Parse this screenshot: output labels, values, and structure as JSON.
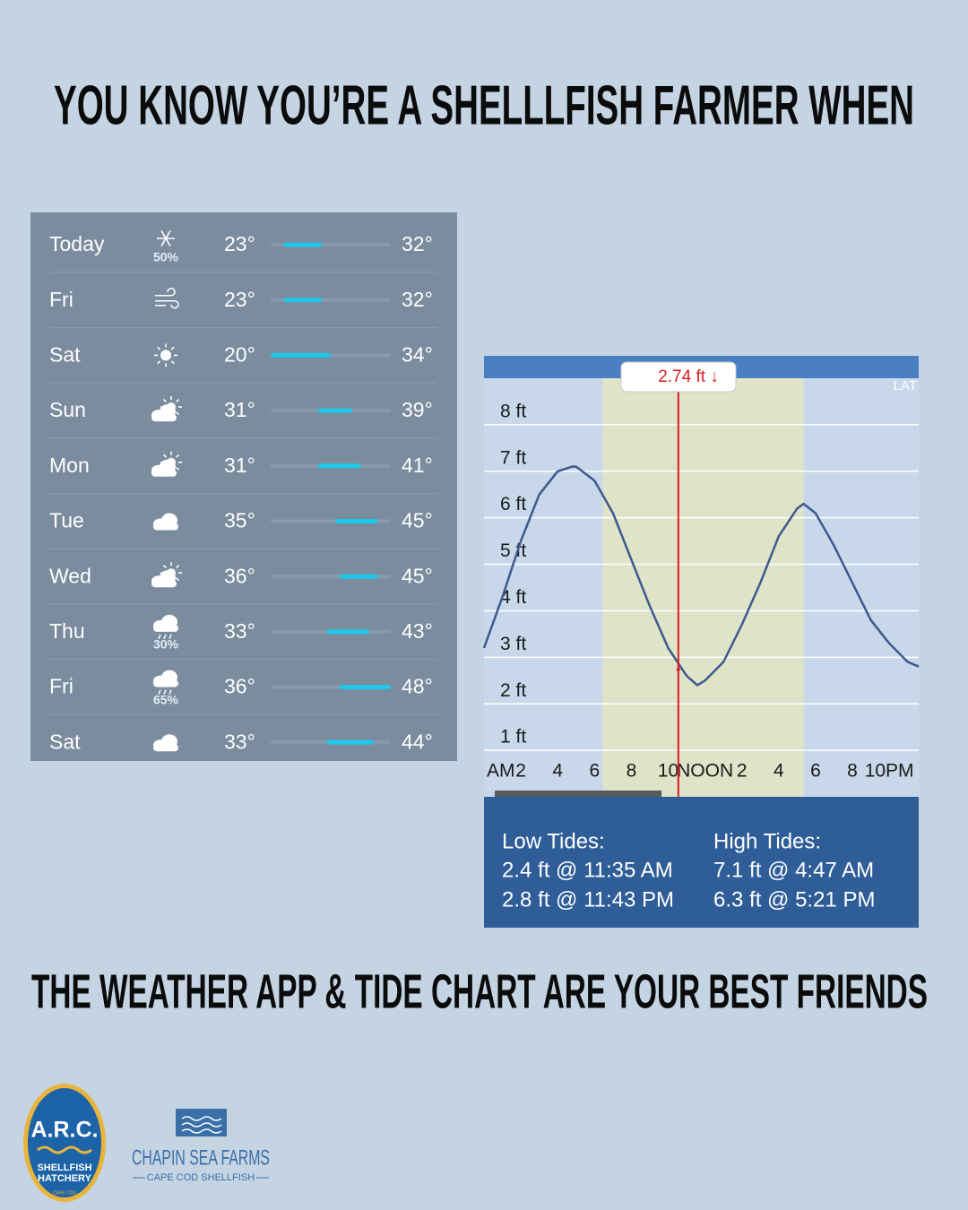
{
  "header": {
    "title": "YOU KNOW YOU’RE A SHELLLFISH FARMER WHEN"
  },
  "weather": {
    "bar_color": "#1ec8e8",
    "days": [
      {
        "day": "Today",
        "icon": "snow",
        "precip": "50%",
        "low": {
          "value": 23,
          "label": "23°"
        },
        "high": {
          "value": 32,
          "label": "32°"
        }
      },
      {
        "day": "Fri",
        "icon": "wind",
        "low": {
          "value": 23,
          "label": "23°"
        },
        "high": {
          "value": 32,
          "label": "32°"
        }
      },
      {
        "day": "Sat",
        "icon": "sun",
        "low": {
          "value": 20,
          "label": "20°"
        },
        "high": {
          "value": 34,
          "label": "34°"
        }
      },
      {
        "day": "Sun",
        "icon": "partly",
        "low": {
          "value": 31,
          "label": "31°"
        },
        "high": {
          "value": 39,
          "label": "39°"
        }
      },
      {
        "day": "Mon",
        "icon": "partly",
        "low": {
          "value": 31,
          "label": "31°"
        },
        "high": {
          "value": 41,
          "label": "41°"
        }
      },
      {
        "day": "Tue",
        "icon": "cloud",
        "low": {
          "value": 35,
          "label": "35°"
        },
        "high": {
          "value": 45,
          "label": "45°"
        }
      },
      {
        "day": "Wed",
        "icon": "partly",
        "low": {
          "value": 36,
          "label": "36°"
        },
        "high": {
          "value": 45,
          "label": "45°"
        }
      },
      {
        "day": "Thu",
        "icon": "rain",
        "precip": "30%",
        "low": {
          "value": 33,
          "label": "33°"
        },
        "high": {
          "value": 43,
          "label": "43°"
        }
      },
      {
        "day": "Fri",
        "icon": "rain",
        "precip": "65%",
        "low": {
          "value": 36,
          "label": "36°"
        },
        "high": {
          "value": 48,
          "label": "48°"
        }
      },
      {
        "day": "Sat",
        "icon": "cloud",
        "low": {
          "value": 33,
          "label": "33°"
        },
        "high": {
          "value": 44,
          "label": "44°"
        }
      }
    ]
  },
  "chart_data": {
    "type": "line",
    "corner_label": "LAT",
    "x": [
      0,
      1,
      2,
      3,
      4,
      4.78,
      5,
      6,
      7,
      8,
      9,
      10,
      11,
      11.58,
      12,
      13,
      14,
      15,
      16,
      17,
      17.35,
      18,
      19,
      20,
      21,
      22,
      23,
      23.6
    ],
    "series": [
      {
        "color": "#3d5a8f",
        "values": [
          3.2,
          4.3,
          5.5,
          6.5,
          7.0,
          7.1,
          7.1,
          6.8,
          6.1,
          5.1,
          4.1,
          3.2,
          2.6,
          2.4,
          2.5,
          2.9,
          3.7,
          4.6,
          5.6,
          6.2,
          6.3,
          6.1,
          5.4,
          4.6,
          3.8,
          3.3,
          2.9,
          2.8
        ]
      }
    ],
    "xlim": [
      0,
      23.6
    ],
    "ylim": [
      0,
      9
    ],
    "xticks": [
      {
        "value": 0,
        "label": "AM"
      },
      2,
      4,
      6,
      8,
      10,
      {
        "value": 12,
        "label": "NOON"
      },
      {
        "value": 14,
        "label": "2"
      },
      {
        "value": 16,
        "label": "4"
      },
      {
        "value": 18,
        "label": "6"
      },
      {
        "value": 20,
        "label": "8"
      },
      {
        "value": 22,
        "label": "10PM"
      }
    ],
    "yticks": [
      {
        "value": 1,
        "label": "1 ft"
      },
      {
        "value": 2,
        "label": "2 ft"
      },
      {
        "value": 3,
        "label": "3 ft"
      },
      {
        "value": 4,
        "label": "4 ft"
      },
      {
        "value": 5,
        "label": "5 ft"
      },
      {
        "value": 6,
        "label": "6 ft"
      },
      {
        "value": 7,
        "label": "7 ft"
      },
      {
        "value": 8,
        "label": "8 ft"
      }
    ],
    "grid": true,
    "daylight": [
      6.45,
      17.35
    ],
    "cursor": {
      "x": 10.55,
      "value": 2.74,
      "value_label": "2.74 ft ↓",
      "color": "#d81e1e"
    }
  },
  "tide_summary": {
    "low_heading": "Low Tides:",
    "low": [
      "2.4 ft @ 11:35 AM",
      "2.8 ft @ 11:43 PM"
    ],
    "high_heading": "High Tides:",
    "high": [
      "7.1 ft @ 4:47 AM",
      "6.3 ft @ 5:21 PM"
    ]
  },
  "footer": {
    "text": "THE WEATHER APP & TIDE CHART  ARE YOUR BEST FRIENDS"
  },
  "logos": {
    "arc": {
      "name": "A.R.C.",
      "line1": "SHELLFISH",
      "line2": "HATCHERY",
      "place": "CAPE COD"
    },
    "chapin": {
      "name": "CHAPIN SEA FARMS",
      "tagline": "CAPE COD SHELLFISH"
    }
  }
}
